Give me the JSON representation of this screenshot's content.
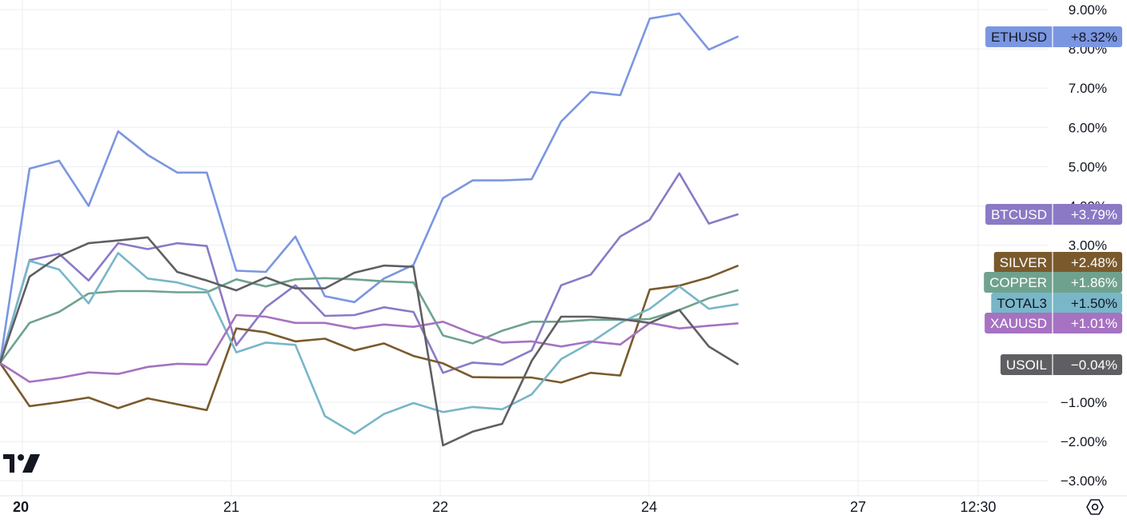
{
  "logo_text": "TV",
  "settings_icon": "gear-icon",
  "chart_data": {
    "type": "line",
    "ylim": [
      -3.0,
      9.0
    ],
    "y_ticks": [
      "9.00%",
      "8.00%",
      "7.00%",
      "6.00%",
      "5.00%",
      "4.00%",
      "3.00%",
      "−1.00%",
      "−2.00%",
      "−3.00%"
    ],
    "y_tick_values": [
      9,
      8,
      7,
      6,
      5,
      4,
      3,
      -1,
      -2,
      -3
    ],
    "x_ticks": [
      "20",
      "21",
      "22",
      "24",
      "27",
      "12:30"
    ],
    "grid": true,
    "legend": "right-axis price tags",
    "series": [
      {
        "name": "ETHUSD",
        "tag": "+8.32%",
        "color": "#7b96e1",
        "values": [
          0.0,
          4.95,
          5.15,
          4.0,
          5.9,
          5.3,
          4.85,
          4.85,
          2.35,
          2.32,
          3.22,
          1.7,
          1.55,
          2.15,
          2.5,
          4.2,
          4.65,
          4.65,
          4.68,
          6.15,
          6.9,
          6.82,
          8.77,
          8.9,
          7.98,
          8.32
        ]
      },
      {
        "name": "BTCUSD",
        "tag": "+3.79%",
        "color": "#8b79c6",
        "values": [
          0.0,
          2.62,
          2.78,
          2.1,
          3.05,
          2.9,
          3.05,
          2.98,
          0.45,
          1.42,
          1.98,
          1.2,
          1.22,
          1.42,
          1.3,
          -0.25,
          0.01,
          -0.04,
          0.32,
          1.98,
          2.25,
          3.22,
          3.65,
          4.83,
          3.55,
          3.79
        ]
      },
      {
        "name": "SILVER",
        "tag": "+2.48%",
        "color": "#7a5a2c",
        "values": [
          0.0,
          -1.1,
          -1.0,
          -0.88,
          -1.15,
          -0.9,
          -1.05,
          -1.2,
          0.88,
          0.78,
          0.55,
          0.62,
          0.32,
          0.5,
          0.18,
          -0.01,
          -0.36,
          -0.37,
          -0.37,
          -0.5,
          -0.25,
          -0.32,
          1.87,
          1.97,
          2.18,
          2.48
        ]
      },
      {
        "name": "COPPER",
        "tag": "+1.86%",
        "color": "#6fa28e",
        "values": [
          0.0,
          1.02,
          1.3,
          1.77,
          1.83,
          1.83,
          1.8,
          1.8,
          2.13,
          1.95,
          2.13,
          2.16,
          2.13,
          2.08,
          2.05,
          0.7,
          0.5,
          0.82,
          1.05,
          1.05,
          1.1,
          1.1,
          1.12,
          1.35,
          1.65,
          1.86
        ]
      },
      {
        "name": "TOTAL3",
        "tag": "+1.50%",
        "color": "#78b6c8",
        "values": [
          0.0,
          2.6,
          2.38,
          1.52,
          2.8,
          2.15,
          2.05,
          1.85,
          0.27,
          0.52,
          0.46,
          -1.35,
          -1.8,
          -1.3,
          -1.02,
          -1.25,
          -1.12,
          -1.18,
          -0.8,
          0.1,
          0.52,
          1.02,
          1.38,
          1.95,
          1.38,
          1.5
        ]
      },
      {
        "name": "XAUUSD",
        "tag": "+1.01%",
        "color": "#a672c1",
        "values": [
          0.0,
          -0.48,
          -0.38,
          -0.24,
          -0.28,
          -0.1,
          -0.02,
          -0.04,
          1.22,
          1.18,
          1.02,
          1.02,
          0.88,
          0.98,
          0.92,
          1.05,
          0.75,
          0.52,
          0.55,
          0.42,
          0.55,
          0.47,
          1.02,
          0.88,
          0.95,
          1.01
        ]
      },
      {
        "name": "USOIL",
        "tag": "−0.04%",
        "color": "#5f5f63",
        "values": [
          0.0,
          2.2,
          2.72,
          3.05,
          3.12,
          3.2,
          2.32,
          2.1,
          1.85,
          2.18,
          1.9,
          1.9,
          2.3,
          2.48,
          2.45,
          -2.1,
          -1.75,
          -1.55,
          0.05,
          1.18,
          1.18,
          1.12,
          1.02,
          1.35,
          0.42,
          -0.04
        ]
      }
    ]
  }
}
